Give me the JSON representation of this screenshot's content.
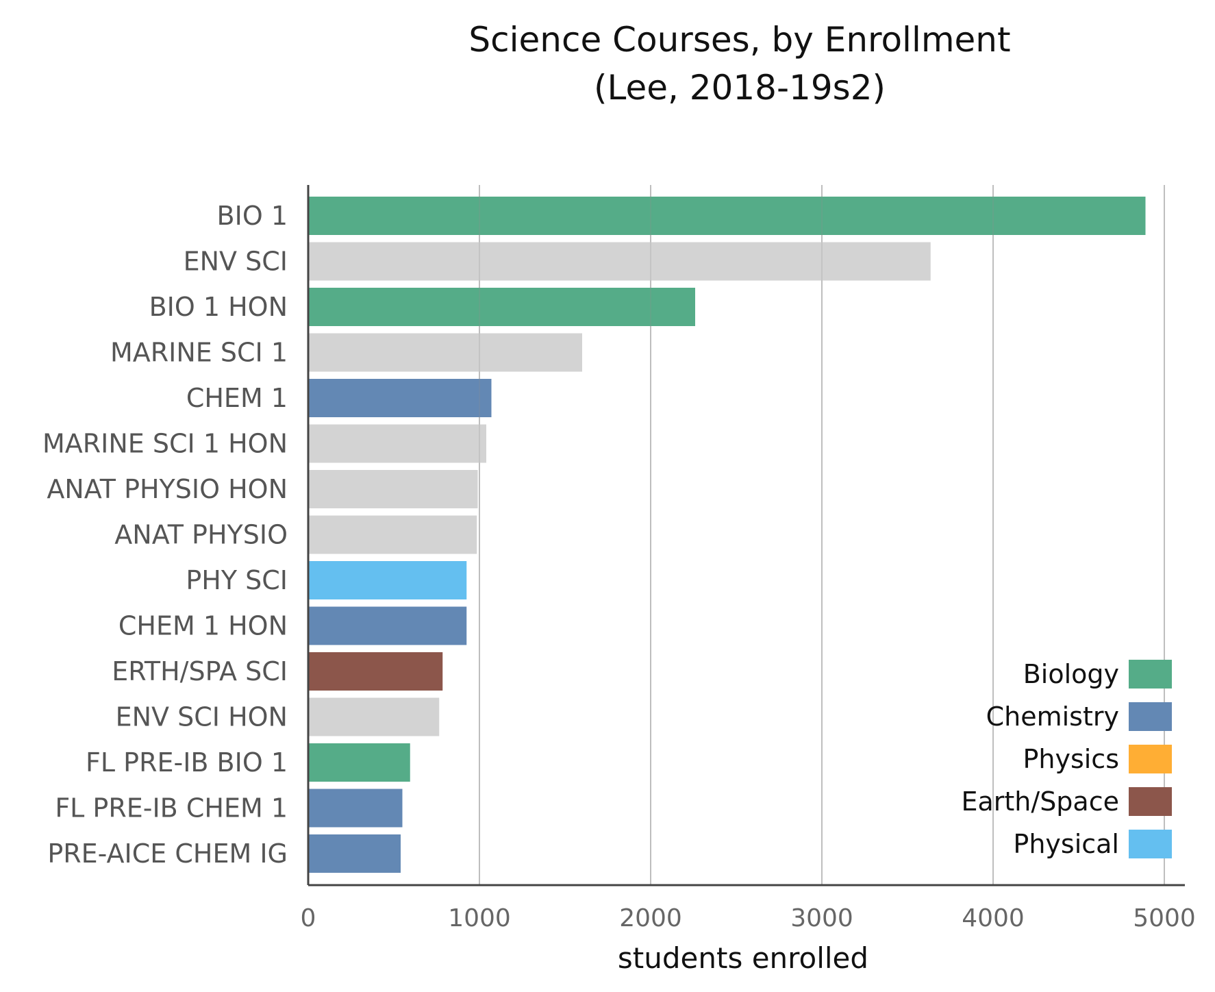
{
  "chart_data": {
    "type": "bar",
    "orientation": "horizontal",
    "title": [
      "Science Courses, by Enrollment",
      "(Lee, 2018-19s2)"
    ],
    "xlabel": "students enrolled",
    "ylabel": "",
    "xlim": [
      0,
      5000
    ],
    "xticks": [
      0,
      1000,
      2000,
      3000,
      4000,
      5000
    ],
    "grid": "vertical",
    "legend_placement": "bottom-right",
    "categories": [
      "BIO 1",
      "ENV SCI",
      "BIO 1 HON",
      "MARINE SCI 1",
      "CHEM 1",
      "MARINE SCI 1 HON",
      "ANAT PHYSIO HON",
      "ANAT PHYSIO",
      "PHY SCI",
      "CHEM 1 HON",
      "ERTH/SPA SCI",
      "ENV SCI HON",
      "FL PRE-IB BIO 1",
      "FL PRE-IB CHEM 1",
      "PRE-AICE CHEM IG"
    ],
    "values": [
      4890,
      3635,
      2260,
      1600,
      1070,
      1040,
      990,
      985,
      925,
      925,
      785,
      765,
      595,
      550,
      540
    ],
    "bar_groups": [
      "Biology",
      "Other",
      "Biology",
      "Other",
      "Chemistry",
      "Other",
      "Other",
      "Other",
      "Physical",
      "Chemistry",
      "Earth/Space",
      "Other",
      "Biology",
      "Chemistry",
      "Chemistry"
    ],
    "legend": [
      {
        "name": "Biology",
        "color": "#55AC88"
      },
      {
        "name": "Chemistry",
        "color": "#6388B4"
      },
      {
        "name": "Physics",
        "color": "#FFAE34"
      },
      {
        "name": "Earth/Space",
        "color": "#8C564B"
      },
      {
        "name": "Physical",
        "color": "#64BFF0"
      }
    ],
    "colors": {
      "Biology": "#55AC88",
      "Chemistry": "#6388B4",
      "Physics": "#FFAE34",
      "Earth/Space": "#8C564B",
      "Physical": "#64BFF0",
      "Other": "#D3D3D3"
    }
  }
}
